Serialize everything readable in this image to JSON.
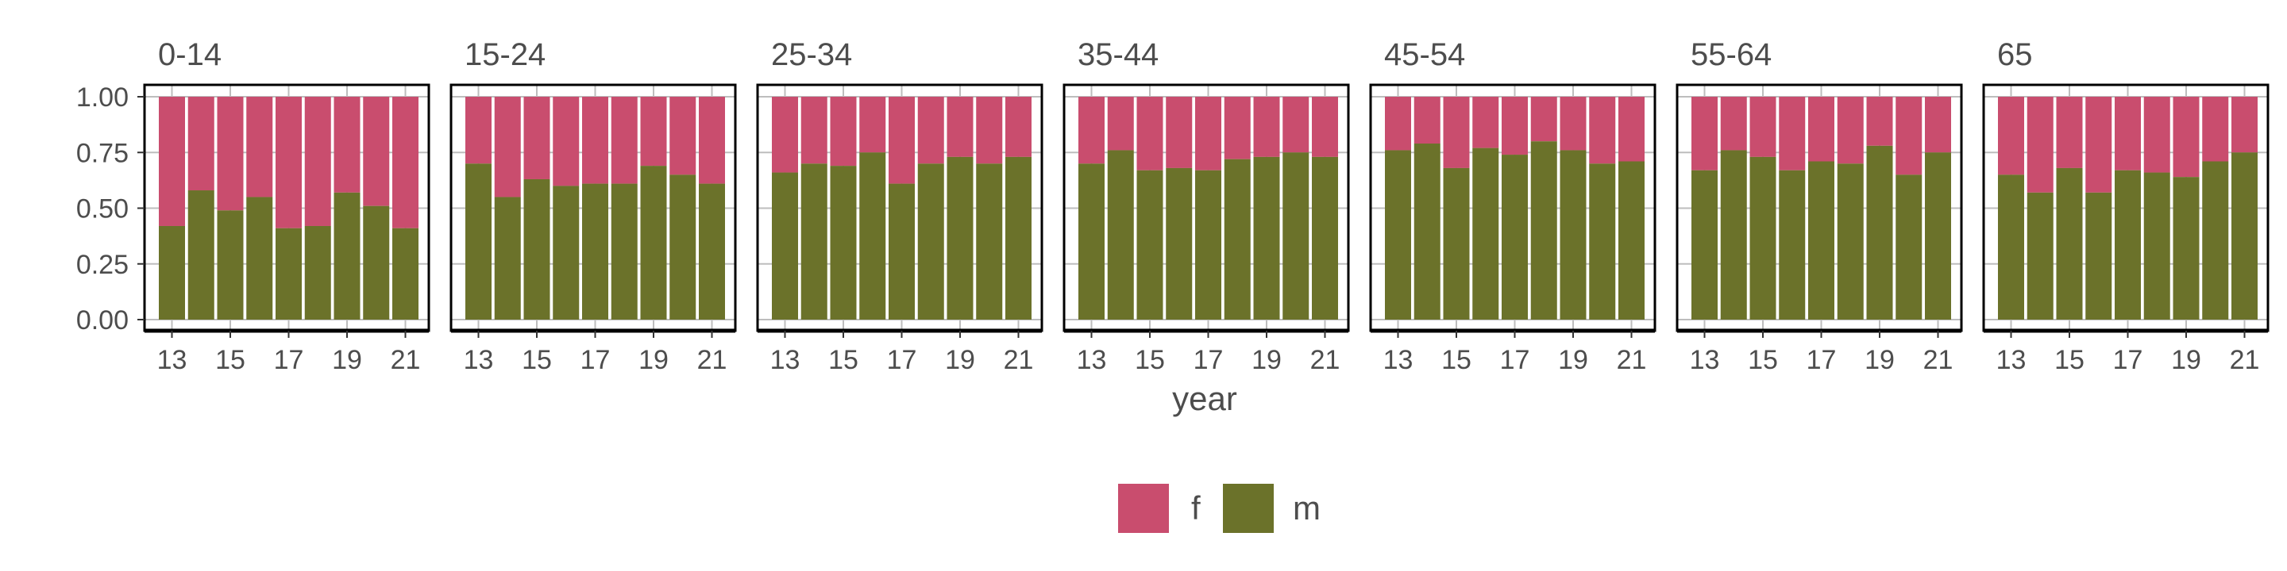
{
  "chart_data": {
    "type": "bar",
    "stacked": true,
    "position": "fill",
    "facet_by": "age group",
    "panels": [
      "0-14",
      "15-24",
      "25-34",
      "35-44",
      "45-54",
      "55-64",
      "65"
    ],
    "x_values": [
      13,
      14,
      15,
      16,
      17,
      18,
      19,
      20,
      21
    ],
    "x_tick_labels": [
      "13",
      "15",
      "17",
      "19",
      "21"
    ],
    "xlabel": "year",
    "ylabel": "",
    "ylim": [
      0,
      1
    ],
    "y_tick_labels": [
      "0.00",
      "0.25",
      "0.50",
      "0.75",
      "1.00"
    ],
    "series": [
      {
        "name": "f",
        "color": "#c94d6e"
      },
      {
        "name": "m",
        "color": "#6b722a"
      }
    ],
    "m_share_by_panel": {
      "0-14": [
        0.42,
        0.58,
        0.49,
        0.55,
        0.41,
        0.42,
        0.57,
        0.51,
        0.41
      ],
      "15-24": [
        0.7,
        0.55,
        0.63,
        0.6,
        0.61,
        0.61,
        0.69,
        0.65,
        0.61
      ],
      "25-34": [
        0.66,
        0.7,
        0.69,
        0.75,
        0.61,
        0.7,
        0.73,
        0.7,
        0.73
      ],
      "35-44": [
        0.7,
        0.76,
        0.67,
        0.68,
        0.67,
        0.72,
        0.73,
        0.75,
        0.73
      ],
      "45-54": [
        0.76,
        0.79,
        0.68,
        0.77,
        0.74,
        0.8,
        0.76,
        0.7,
        0.71
      ],
      "55-64": [
        0.67,
        0.76,
        0.73,
        0.67,
        0.71,
        0.7,
        0.78,
        0.65,
        0.75
      ],
      "65": [
        0.65,
        0.57,
        0.68,
        0.57,
        0.67,
        0.66,
        0.64,
        0.71,
        0.75
      ]
    },
    "grid": true,
    "legend": "bottom"
  }
}
